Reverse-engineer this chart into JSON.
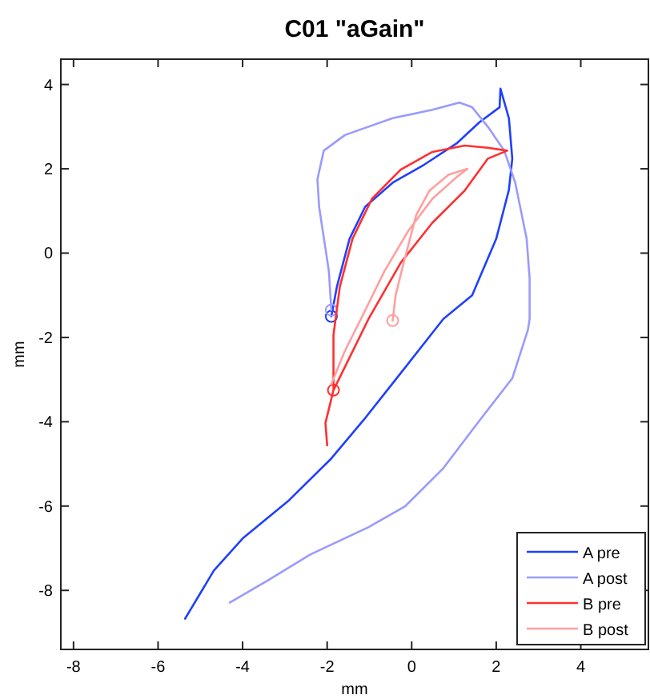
{
  "chart_data": {
    "type": "line",
    "title": "C01  \"aGain\"",
    "xlabel": "mm",
    "ylabel": "mm",
    "xlim": [
      -8.3,
      5.6
    ],
    "ylim": [
      -9.4,
      4.6
    ],
    "xticks": [
      -8,
      -6,
      -4,
      -2,
      0,
      2,
      4
    ],
    "yticks": [
      -8,
      -6,
      -4,
      -2,
      0,
      2,
      4
    ],
    "grid": false,
    "legend": "bottom right",
    "series": [
      {
        "name": "A pre",
        "color": "#2040ff",
        "x": [
          -1.9,
          -1.77,
          -1.47,
          -1.1,
          -0.45,
          0.3,
          1.06,
          1.6,
          2.08,
          2.1,
          2.3,
          2.38,
          2.3,
          2.0,
          1.43,
          0.75,
          -0.38,
          -1.13,
          -1.9,
          -2.9,
          -4.0,
          -4.68,
          -5.36
        ],
        "values": [
          -1.5,
          -0.8,
          0.34,
          1.1,
          1.67,
          2.1,
          2.6,
          3.1,
          3.46,
          3.9,
          3.2,
          2.24,
          1.5,
          0.34,
          -1.0,
          -1.56,
          -3.0,
          -3.95,
          -4.87,
          -5.86,
          -6.77,
          -7.53,
          -8.67
        ]
      },
      {
        "name": "A post",
        "color": "#9a9aff",
        "x": [
          -1.9,
          -1.96,
          -2.19,
          -2.23,
          -2.08,
          -1.58,
          -0.45,
          0.49,
          1.13,
          1.43,
          1.8,
          2.19,
          2.45,
          2.72,
          2.79,
          2.79,
          2.75,
          2.38,
          1.62,
          0.75,
          -0.15,
          -1.02,
          -2.4,
          -3.4,
          -4.3
        ],
        "values": [
          -1.35,
          -0.42,
          1.1,
          1.75,
          2.43,
          2.8,
          3.2,
          3.4,
          3.57,
          3.46,
          3.0,
          2.43,
          1.67,
          0.34,
          -0.6,
          -1.56,
          -1.82,
          -2.97,
          -3.95,
          -5.1,
          -6.0,
          -6.5,
          -7.15,
          -7.76,
          -8.29
        ]
      },
      {
        "name": "B pre",
        "color": "#ff3030",
        "x": [
          -1.85,
          -1.85,
          -1.7,
          -1.4,
          -0.94,
          -0.26,
          0.49,
          1.25,
          1.8,
          2.26,
          1.8,
          1.25,
          0.49,
          -0.26,
          -1.02,
          -1.58,
          -1.85,
          -2.04,
          -2.0
        ],
        "values": [
          -3.25,
          -1.94,
          -0.8,
          0.34,
          1.29,
          1.98,
          2.4,
          2.55,
          2.5,
          2.43,
          2.24,
          1.48,
          0.72,
          -0.23,
          -1.56,
          -2.7,
          -3.25,
          -4.03,
          -4.56
        ]
      },
      {
        "name": "B post",
        "color": "#ff9f9f",
        "x": [
          -0.45,
          -0.38,
          -0.19,
          0.11,
          0.42,
          0.87,
          1.32,
          1.06,
          0.49,
          -0.08,
          -0.64,
          -1.2,
          -1.58,
          -1.9
        ],
        "values": [
          -1.6,
          -1.0,
          -0.23,
          0.91,
          1.48,
          1.86,
          2.0,
          1.8,
          1.29,
          0.53,
          -0.42,
          -1.56,
          -2.32,
          -3.1
        ]
      }
    ]
  }
}
